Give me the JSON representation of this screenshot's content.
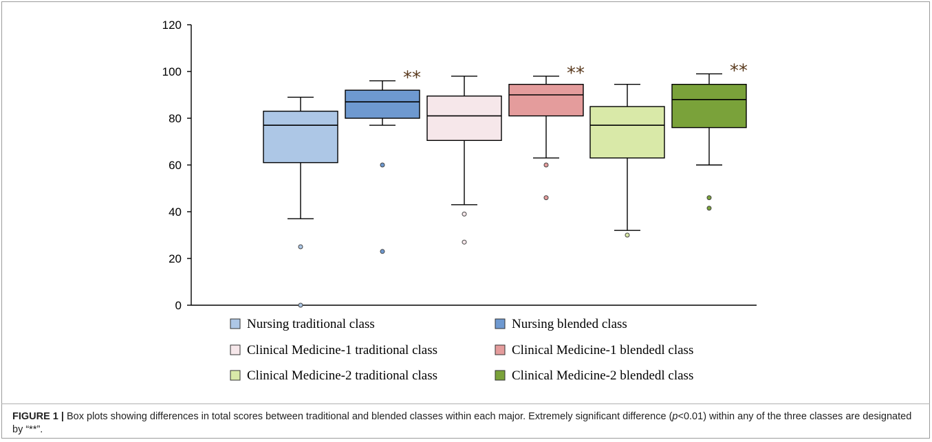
{
  "chart_data": {
    "type": "box",
    "ylim": [
      0,
      120
    ],
    "yticks": [
      "0",
      "20",
      "40",
      "60",
      "80",
      "100",
      "120"
    ],
    "significance_marker": "**",
    "series": [
      {
        "name": "Nursing traditional class",
        "color": "#adc7e6",
        "stroke": "#000000",
        "min": 37,
        "q1": 61,
        "median": 77,
        "q3": 83,
        "max": 89,
        "outliers": [
          25,
          0
        ],
        "significant": false
      },
      {
        "name": "Nursing blended class",
        "color": "#6e99d0",
        "stroke": "#000000",
        "min": 77,
        "q1": 80,
        "median": 87,
        "q3": 92,
        "max": 96,
        "outliers": [
          60,
          23
        ],
        "significant": true
      },
      {
        "name": "Clinical Medicine-1 traditional class",
        "color": "#f6e7ea",
        "stroke": "#000000",
        "min": 43,
        "q1": 70.5,
        "median": 81,
        "q3": 89.5,
        "max": 98,
        "outliers": [
          39,
          27
        ],
        "significant": false
      },
      {
        "name": "Clinical Medicine-1 blendedl class",
        "color": "#e49c9c",
        "stroke": "#000000",
        "min": 63,
        "q1": 81,
        "median": 90,
        "q3": 94.5,
        "max": 98,
        "outliers": [
          60,
          46
        ],
        "significant": true
      },
      {
        "name": "Clinical Medicine-2 traditional class",
        "color": "#d9e9a8",
        "stroke": "#000000",
        "min": 32,
        "q1": 63,
        "median": 77,
        "q3": 85,
        "max": 94.5,
        "outliers": [
          30
        ],
        "significant": false
      },
      {
        "name": "Clinical Medicine-2 blendedl class",
        "color": "#7aa23a",
        "stroke": "#000000",
        "min": 60,
        "q1": 76,
        "median": 88,
        "q3": 94.5,
        "max": 99,
        "outliers": [
          46,
          41.5
        ],
        "significant": true
      }
    ]
  },
  "caption": {
    "label": "FIGURE 1 |",
    "text_before_p": " Box plots showing differences in total scores between traditional and blended classes within each major. Extremely significant difference (",
    "p_symbol": "p",
    "text_after_p": "<0.01) within any of the three classes are designated by “**”."
  }
}
